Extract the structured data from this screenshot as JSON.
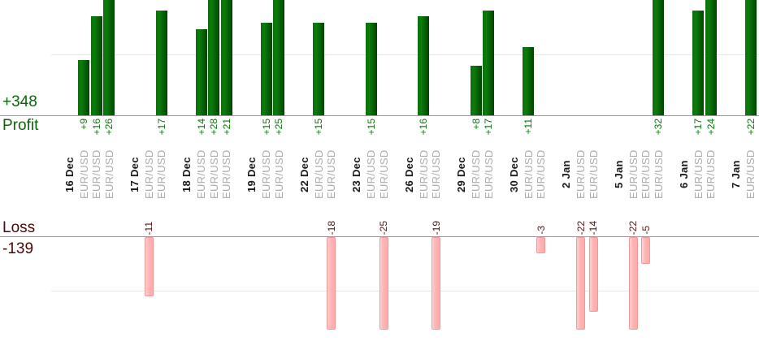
{
  "chart_data": {
    "type": "bar",
    "orientation": "vertical",
    "legend": "none",
    "grid": "faint horizontal gridline per panel (unlabeled, approx. 10 units from baseline)",
    "panels": {
      "profit": {
        "label": "Profit",
        "total": "+348"
      },
      "loss": {
        "label": "Loss",
        "total": "-139"
      }
    },
    "groups": [
      {
        "date": "16 Dec",
        "trades": [
          {
            "symbol": "EUR/USD",
            "value": 9
          },
          {
            "symbol": "EUR/USD",
            "value": 16
          },
          {
            "symbol": "EUR/USD",
            "value": 26
          }
        ]
      },
      {
        "date": "17 Dec",
        "trades": [
          {
            "symbol": "EUR/USD",
            "value": -11
          },
          {
            "symbol": "EUR/USD",
            "value": 17
          }
        ]
      },
      {
        "date": "18 Dec",
        "trades": [
          {
            "symbol": "EUR/USD",
            "value": 14
          },
          {
            "symbol": "EUR/USD",
            "value": 28
          },
          {
            "symbol": "EUR/USD",
            "value": 21
          }
        ]
      },
      {
        "date": "19 Dec",
        "trades": [
          {
            "symbol": "EUR/USD",
            "value": 15
          },
          {
            "symbol": "EUR/USD",
            "value": 25
          }
        ]
      },
      {
        "date": "22 Dec",
        "trades": [
          {
            "symbol": "EUR/USD",
            "value": 15
          },
          {
            "symbol": "EUR/USD",
            "value": -18
          }
        ]
      },
      {
        "date": "23 Dec",
        "trades": [
          {
            "symbol": "EUR/USD",
            "value": 15
          },
          {
            "symbol": "EUR/USD",
            "value": -25
          }
        ]
      },
      {
        "date": "26 Dec",
        "trades": [
          {
            "symbol": "EUR/USD",
            "value": 16
          },
          {
            "symbol": "EUR/USD",
            "value": -19
          }
        ]
      },
      {
        "date": "29 Dec",
        "trades": [
          {
            "symbol": "EUR/USD",
            "value": 8
          },
          {
            "symbol": "EUR/USD",
            "value": 17
          }
        ]
      },
      {
        "date": "30 Dec",
        "trades": [
          {
            "symbol": "EUR/USD",
            "value": 11
          },
          {
            "symbol": "EUR/USD",
            "value": -3
          }
        ]
      },
      {
        "date": "2 Jan",
        "trades": [
          {
            "symbol": "EUR/USD",
            "value": -22
          },
          {
            "symbol": "EUR/USD",
            "value": -14
          }
        ]
      },
      {
        "date": "5 Jan",
        "trades": [
          {
            "symbol": "EUR/USD",
            "value": -22
          },
          {
            "symbol": "EUR/USD",
            "value": -5
          },
          {
            "symbol": "EUR/USD",
            "value": 32
          }
        ]
      },
      {
        "date": "6 Jan",
        "trades": [
          {
            "symbol": "EUR/USD",
            "value": 17
          },
          {
            "symbol": "EUR/USD",
            "value": 24
          }
        ]
      },
      {
        "date": "7 Jan",
        "trades": [
          {
            "symbol": "EUR/USD",
            "value": 22
          }
        ]
      }
    ],
    "colors": {
      "profit_bar": "#0b7d0b",
      "profit_bar_dark": "#014301",
      "loss_bar_fill": "#ffb3b3",
      "loss_bar_border": "#f19999",
      "profit_value_text": "#007a00",
      "loss_value_text": "#5a0f0f",
      "profit_axis_text": "#0a650a",
      "loss_axis_text": "#4b0808",
      "date_text": "#1a1a1a",
      "symbol_text": "#ababab",
      "baseline": "#999999",
      "gridline": "#e8e8e8"
    }
  }
}
